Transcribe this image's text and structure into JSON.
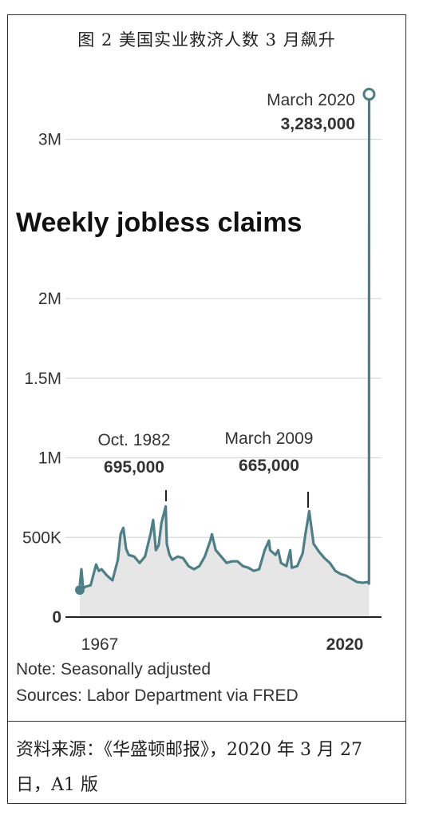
{
  "figure_title": "图 2  美国实业救济人数 3 月飙升",
  "source_line": "资料来源：《华盛顿邮报》，2020 年 3 月 27 日，A1 版",
  "colors": {
    "line": "#4e7f86",
    "area": "#e6e6e6",
    "grid": "#d9d9d9",
    "axis": "#222222"
  },
  "chart_data": {
    "type": "area",
    "title": "Weekly jobless claims",
    "xlabel": "",
    "ylabel": "",
    "x_tick_labels": [
      "1967",
      "2020"
    ],
    "y_ticks": [
      {
        "value": 0,
        "label": "0"
      },
      {
        "value": 500000,
        "label": "500K"
      },
      {
        "value": 1000000,
        "label": "1M"
      },
      {
        "value": 1500000,
        "label": "1.5M"
      },
      {
        "value": 2000000,
        "label": "2M"
      },
      {
        "value": 3000000,
        "label": "3M"
      }
    ],
    "ylim": [
      0,
      3300000
    ],
    "xlim": [
      1967,
      2020.3
    ],
    "grid": true,
    "series": [
      {
        "x": [
          1967,
          1967.3,
          1967.6,
          1968,
          1969,
          1970,
          1970.5,
          1971,
          1972,
          1973,
          1974,
          1974.5,
          1975,
          1975.5,
          1976,
          1977,
          1978,
          1979,
          1980,
          1980.5,
          1981,
          1981.5,
          1982,
          1982.8,
          1983,
          1983.5,
          1984,
          1985,
          1986,
          1987,
          1988,
          1989,
          1990,
          1991,
          1991.3,
          1992,
          1993,
          1994,
          1995,
          1996,
          1997,
          1998,
          1999,
          2000,
          2001,
          2001.8,
          2002,
          2003,
          2003.5,
          2004,
          2005,
          2005.7,
          2006,
          2007,
          2008,
          2008.5,
          2009,
          2009.2,
          2010,
          2011,
          2012,
          2013,
          2014,
          2015,
          2016,
          2017,
          2018,
          2019,
          2020,
          2020.2,
          2020.22
        ],
        "values": [
          200000,
          300000,
          180000,
          190000,
          200000,
          330000,
          290000,
          300000,
          260000,
          230000,
          360000,
          520000,
          560000,
          430000,
          390000,
          380000,
          340000,
          380000,
          520000,
          610000,
          420000,
          450000,
          590000,
          695000,
          460000,
          390000,
          360000,
          380000,
          370000,
          320000,
          300000,
          320000,
          380000,
          480000,
          520000,
          420000,
          380000,
          340000,
          350000,
          350000,
          320000,
          310000,
          290000,
          300000,
          420000,
          480000,
          420000,
          390000,
          420000,
          340000,
          320000,
          420000,
          310000,
          320000,
          400000,
          520000,
          620000,
          665000,
          460000,
          410000,
          370000,
          340000,
          290000,
          270000,
          260000,
          240000,
          220000,
          215000,
          220000,
          210000,
          3283000
        ]
      }
    ],
    "annotations": [
      {
        "label": "Oct. 1982",
        "value_text": "695,000",
        "x": 1982.8,
        "y": 695000
      },
      {
        "label": "March 2009",
        "value_text": "665,000",
        "x": 2009.2,
        "y": 665000
      },
      {
        "label": "March 2020",
        "value_text": "3,283,000",
        "x": 2020.22,
        "y": 3283000
      }
    ],
    "notes": [
      "Note: Seasonally adjusted",
      "Sources: Labor Department via FRED"
    ]
  }
}
